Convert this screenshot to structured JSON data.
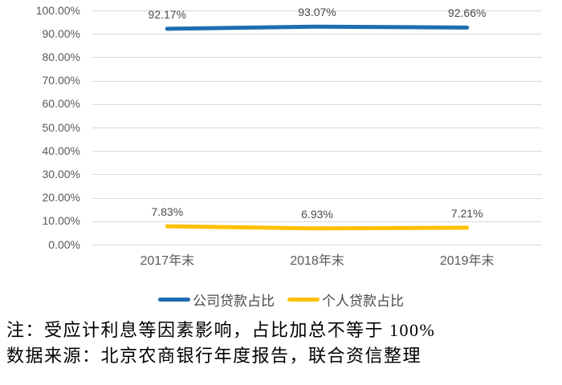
{
  "chart_data": {
    "type": "line",
    "title": "",
    "xlabel": "",
    "ylabel": "",
    "categories": [
      "2017年末",
      "2018年末",
      "2019年末"
    ],
    "series": [
      {
        "name": "公司贷款占比",
        "color": "#1F6DB3",
        "values": [
          92.17,
          93.07,
          92.66
        ],
        "labels": [
          "92.17%",
          "93.07%",
          "92.66%"
        ]
      },
      {
        "name": "个人贷款占比",
        "color": "#FFC000",
        "values": [
          7.83,
          6.93,
          7.21
        ],
        "labels": [
          "7.83%",
          "6.93%",
          "7.21%"
        ]
      }
    ],
    "ylim": [
      0,
      100
    ],
    "ytick_step": 10,
    "yticks": [
      "100.00%",
      "90.00%",
      "80.00%",
      "70.00%",
      "60.00%",
      "50.00%",
      "40.00%",
      "30.00%",
      "20.00%",
      "10.00%",
      "0.00%"
    ],
    "grid": true,
    "legend_position": "bottom"
  },
  "notes": {
    "note": "注：受应计利息等因素影响，占比加总不等于 100%",
    "source": "数据来源：北京农商银行年度报告，联合资信整理"
  },
  "colors": {
    "gridline": "#D9D9D9",
    "axis_text": "#595959",
    "label_text": "#4A4A4A",
    "background": "#FFFFFF"
  }
}
